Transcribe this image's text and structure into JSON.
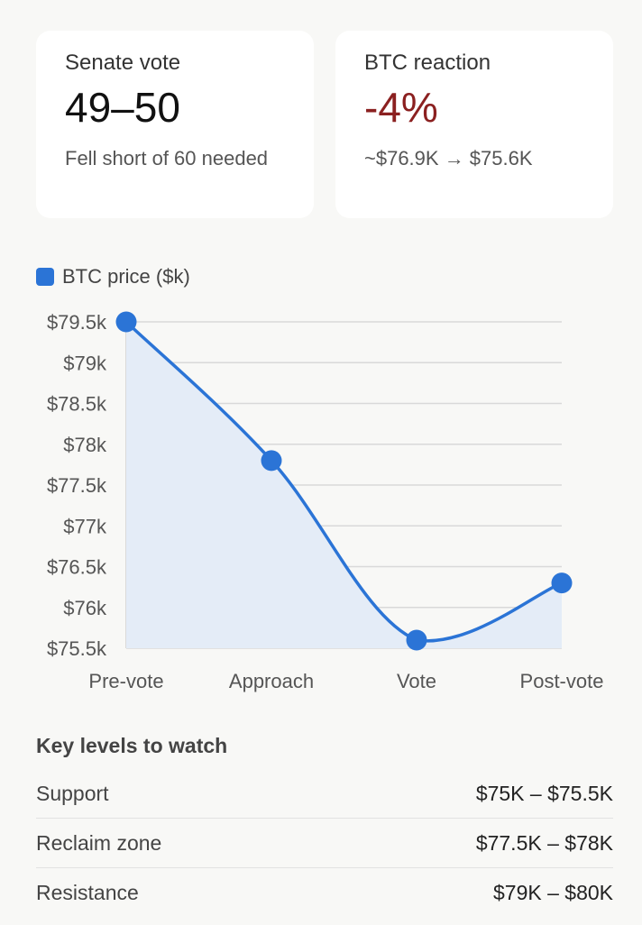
{
  "cards": [
    {
      "label": "Senate vote",
      "value": "49–50",
      "sub": "Fell short of 60 needed"
    },
    {
      "label": "BTC reaction",
      "value": "-4%",
      "sub": "~$76.9K → $75.6K"
    }
  ],
  "colors": {
    "accent": "#2b74d6",
    "negative": "#8b2020",
    "area_fill": "#e4ecf7"
  },
  "chart_data": {
    "type": "area",
    "legend": "BTC price ($k)",
    "legend_position": "top-left",
    "categories": [
      "Pre-vote",
      "Approach",
      "Vote",
      "Post-vote"
    ],
    "series": [
      {
        "name": "BTC price ($k)",
        "values": [
          79.5,
          77.8,
          75.6,
          76.3
        ]
      }
    ],
    "ylim": [
      75.5,
      79.5
    ],
    "yticks": [
      79.5,
      79,
      78.5,
      78,
      77.5,
      77,
      76.5,
      76,
      75.5
    ],
    "ytick_labels": [
      "$79.5k",
      "$79k",
      "$78.5k",
      "$78k",
      "$77.5k",
      "$77k",
      "$76.5k",
      "$76k",
      "$75.5k"
    ],
    "grid": true
  },
  "levels": {
    "title": "Key levels to watch",
    "rows": [
      {
        "name": "Support",
        "range": "$75K – $75.5K"
      },
      {
        "name": "Reclaim zone",
        "range": "$77.5K – $78K"
      },
      {
        "name": "Resistance",
        "range": "$79K – $80K"
      }
    ]
  }
}
